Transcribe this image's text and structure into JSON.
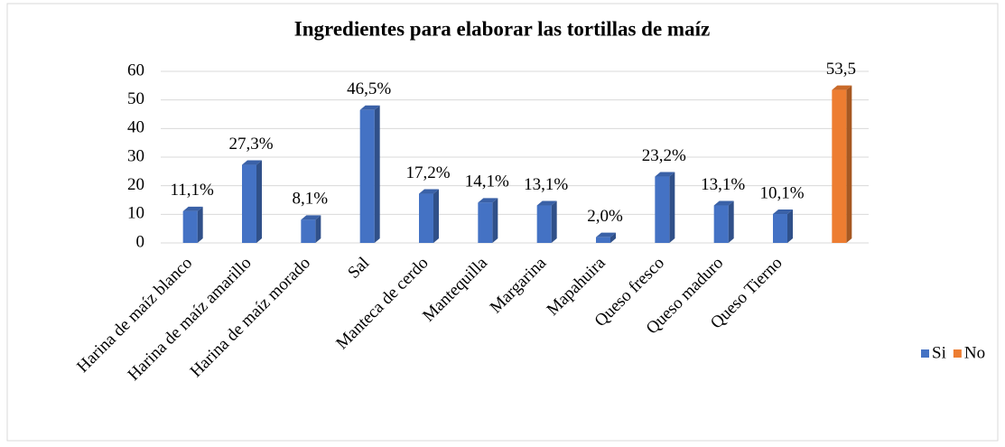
{
  "chart_data": {
    "type": "bar",
    "title": "Ingredientes para elaborar las tortillas de maíz",
    "categories": [
      "Harina de maíz blanco",
      "Harina de maíz amarillo",
      "Harina de maíz morado",
      "Sal",
      "Manteca de cerdo",
      "Mantequilla",
      "Margarina",
      "Mapahuira",
      "Queso fresco",
      "Queso maduro",
      "Queso Tierno",
      null
    ],
    "series": [
      {
        "name": "Si",
        "color": "#4472c4",
        "values": [
          11.1,
          27.3,
          8.1,
          46.5,
          17.2,
          14.1,
          13.1,
          2.0,
          23.2,
          13.1,
          10.1,
          null
        ],
        "value_labels": [
          "11,1%",
          "27,3%",
          "8,1%",
          "46,5%",
          "17,2%",
          "14,1%",
          "13,1%",
          "2,0%",
          "23,2%",
          "13,1%",
          "10,1%",
          null
        ]
      },
      {
        "name": "No",
        "color": "#ed7d31",
        "values": [
          null,
          null,
          null,
          null,
          null,
          null,
          null,
          null,
          null,
          null,
          null,
          53.5
        ],
        "value_labels": [
          null,
          null,
          null,
          null,
          null,
          null,
          null,
          null,
          null,
          null,
          null,
          "53,5"
        ]
      }
    ],
    "ylim": [
      0,
      60
    ],
    "yticks": [
      0,
      10,
      20,
      30,
      40,
      50,
      60
    ],
    "grid": true,
    "legend": "right"
  }
}
